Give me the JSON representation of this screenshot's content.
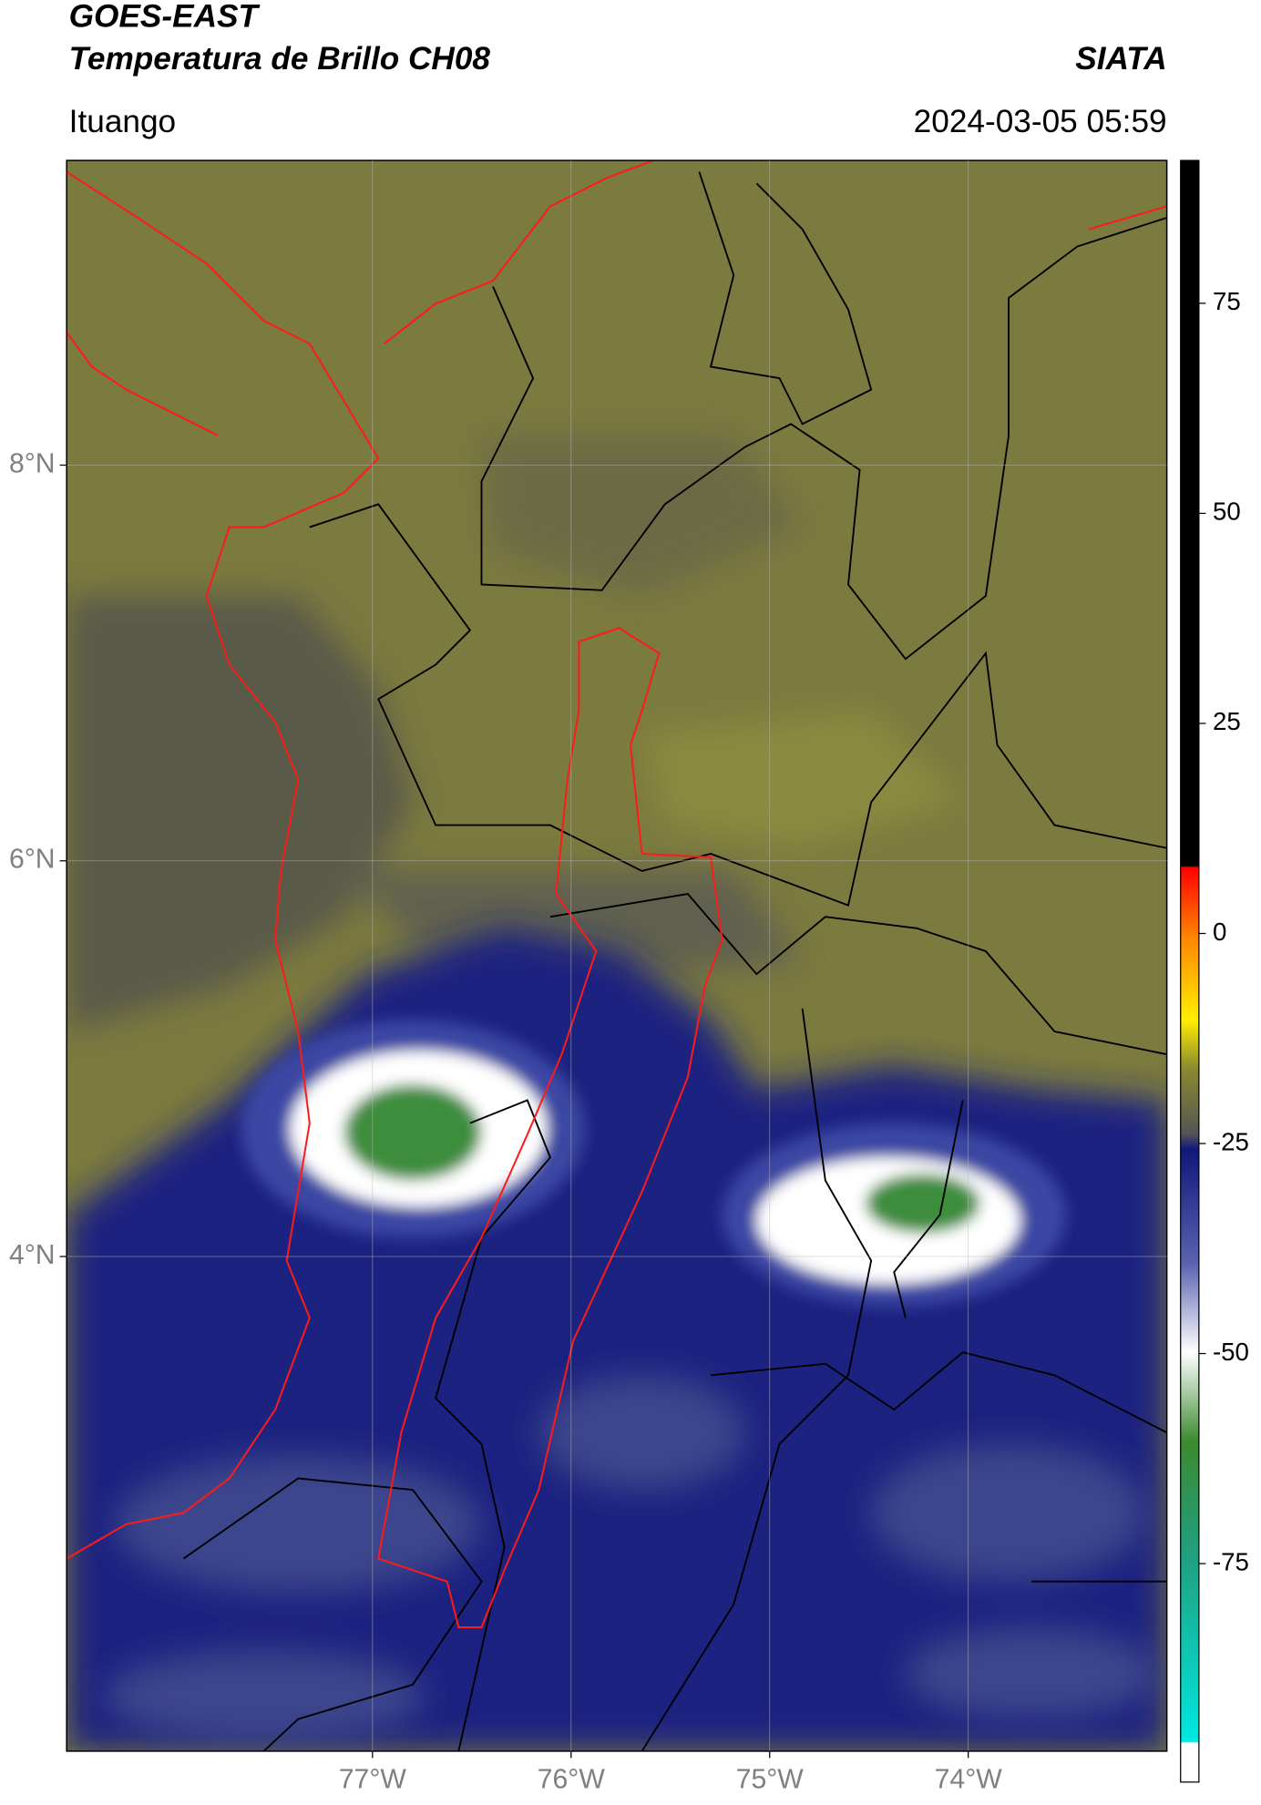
{
  "chart_data": {
    "type": "map",
    "title": "GOES-EAST",
    "subtitle": "Temperatura de Brillo CH08",
    "source": "SIATA",
    "location": "Ituango",
    "datetime": "2024-03-05 05:59",
    "xlim": [
      -78.54,
      -73.0
    ],
    "ylim": [
      1.5,
      9.54
    ],
    "xticks": [
      {
        "value": -77,
        "label": "77°W"
      },
      {
        "value": -76,
        "label": "76°W"
      },
      {
        "value": -75,
        "label": "75°W"
      },
      {
        "value": -74,
        "label": "74°W"
      }
    ],
    "yticks": [
      {
        "value": 8,
        "label": "8°N"
      },
      {
        "value": 6,
        "label": "6°N"
      },
      {
        "value": 4,
        "label": "4°N"
      }
    ],
    "grid": true,
    "colorbar": {
      "lim": [
        -101,
        92
      ],
      "ticks": [
        75,
        50,
        25,
        0,
        -25,
        -50,
        -75
      ]
    }
  }
}
